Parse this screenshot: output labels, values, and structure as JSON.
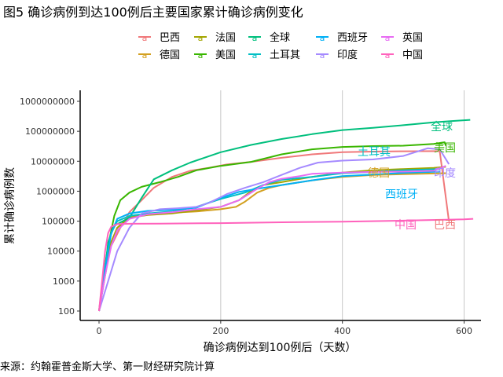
{
  "title": "图5 确诊病例到达100例后主要国家累计确诊病例变化",
  "source": "来源：约翰霍普金斯大学、第一财经研究院计算",
  "chart_data": {
    "type": "line",
    "xlabel": "确诊病例达到100例后（天数）",
    "ylabel": "累计确诊病例数",
    "x_scale": "linear",
    "y_scale": "log10",
    "xlim": [
      0,
      620
    ],
    "ylim": [
      100,
      1000000000
    ],
    "x_ticks": [
      0,
      200,
      400,
      600
    ],
    "x_tick_labels": [
      "0",
      "200",
      "400",
      "600"
    ],
    "y_ticks": [
      100,
      1000,
      10000,
      100000,
      1000000,
      10000000,
      100000000,
      1000000000
    ],
    "y_tick_labels": [
      "100",
      "1000",
      "10000",
      "100000",
      "1000000",
      "10000000",
      "100000000",
      "1000000000"
    ],
    "grid": "vertical major gridlines",
    "legend_position": "top",
    "series": [
      {
        "name": "巴西",
        "color": "#f0787a",
        "end_label": "巴西",
        "points": [
          [
            0,
            100
          ],
          [
            10,
            2000
          ],
          [
            20,
            15000
          ],
          [
            35,
            60000
          ],
          [
            50,
            200000
          ],
          [
            70,
            500000
          ],
          [
            90,
            1300000
          ],
          [
            120,
            3000000
          ],
          [
            150,
            4800000
          ],
          [
            180,
            6000000
          ],
          [
            210,
            7800000
          ],
          [
            250,
            9500000
          ],
          [
            300,
            13000000
          ],
          [
            350,
            17000000
          ],
          [
            400,
            20000000
          ],
          [
            450,
            21000000
          ],
          [
            500,
            21500000
          ],
          [
            560,
            21800000
          ],
          [
            575,
            100000
          ]
        ]
      },
      {
        "name": "德国",
        "color": "#d3a020",
        "end_label": "德国",
        "points": [
          [
            0,
            100
          ],
          [
            10,
            2000
          ],
          [
            20,
            20000
          ],
          [
            30,
            60000
          ],
          [
            50,
            140000
          ],
          [
            80,
            170000
          ],
          [
            120,
            190000
          ],
          [
            160,
            210000
          ],
          [
            200,
            250000
          ],
          [
            225,
            300000
          ],
          [
            240,
            450000
          ],
          [
            260,
            900000
          ],
          [
            280,
            1300000
          ],
          [
            300,
            1600000
          ],
          [
            350,
            2300000
          ],
          [
            400,
            3000000
          ],
          [
            450,
            3500000
          ],
          [
            500,
            3700000
          ],
          [
            570,
            4000000
          ]
        ]
      },
      {
        "name": "法国",
        "color": "#a3a500",
        "end_label": "",
        "points": [
          [
            0,
            100
          ],
          [
            10,
            1500
          ],
          [
            20,
            20000
          ],
          [
            30,
            60000
          ],
          [
            50,
            130000
          ],
          [
            80,
            160000
          ],
          [
            120,
            180000
          ],
          [
            160,
            230000
          ],
          [
            200,
            300000
          ],
          [
            230,
            500000
          ],
          [
            250,
            1000000
          ],
          [
            270,
            1600000
          ],
          [
            300,
            2000000
          ],
          [
            350,
            3000000
          ],
          [
            400,
            4200000
          ],
          [
            450,
            5000000
          ],
          [
            500,
            5500000
          ],
          [
            550,
            6000000
          ],
          [
            570,
            6500000
          ]
        ]
      },
      {
        "name": "美国",
        "color": "#39b600",
        "end_label": "美国",
        "points": [
          [
            0,
            100
          ],
          [
            8,
            2000
          ],
          [
            15,
            15000
          ],
          [
            25,
            150000
          ],
          [
            35,
            500000
          ],
          [
            50,
            900000
          ],
          [
            70,
            1400000
          ],
          [
            100,
            2000000
          ],
          [
            130,
            3000000
          ],
          [
            160,
            5000000
          ],
          [
            200,
            7000000
          ],
          [
            250,
            9500000
          ],
          [
            300,
            17000000
          ],
          [
            350,
            25000000
          ],
          [
            400,
            30000000
          ],
          [
            450,
            32000000
          ],
          [
            500,
            33000000
          ],
          [
            550,
            38000000
          ],
          [
            568,
            43000000
          ],
          [
            570,
            33000000
          ]
        ]
      },
      {
        "name": "全球",
        "color": "#00bf7d",
        "end_label": "全球",
        "points": [
          [
            0,
            100
          ],
          [
            8,
            1000
          ],
          [
            15,
            20000
          ],
          [
            25,
            70000
          ],
          [
            35,
            90000
          ],
          [
            50,
            130000
          ],
          [
            70,
            600000
          ],
          [
            90,
            2500000
          ],
          [
            120,
            5000000
          ],
          [
            150,
            9000000
          ],
          [
            200,
            20000000
          ],
          [
            250,
            35000000
          ],
          [
            300,
            55000000
          ],
          [
            350,
            80000000
          ],
          [
            400,
            110000000
          ],
          [
            450,
            130000000
          ],
          [
            500,
            160000000
          ],
          [
            550,
            200000000
          ],
          [
            580,
            220000000
          ],
          [
            610,
            240000000
          ]
        ]
      },
      {
        "name": "土耳其",
        "color": "#00bfc4",
        "end_label": "土耳其",
        "points": [
          [
            0,
            100
          ],
          [
            10,
            3000
          ],
          [
            20,
            40000
          ],
          [
            30,
            100000
          ],
          [
            50,
            150000
          ],
          [
            80,
            180000
          ],
          [
            120,
            210000
          ],
          [
            160,
            300000
          ],
          [
            200,
            550000
          ],
          [
            240,
            900000
          ],
          [
            270,
            1600000
          ],
          [
            300,
            2400000
          ],
          [
            350,
            3000000
          ],
          [
            400,
            4000000
          ],
          [
            450,
            4400000
          ],
          [
            500,
            5000000
          ],
          [
            560,
            5500000
          ]
        ]
      },
      {
        "name": "西班牙",
        "color": "#00b0f6",
        "end_label": "西班牙",
        "points": [
          [
            0,
            100
          ],
          [
            10,
            2500
          ],
          [
            20,
            40000
          ],
          [
            30,
            120000
          ],
          [
            50,
            180000
          ],
          [
            80,
            220000
          ],
          [
            120,
            240000
          ],
          [
            160,
            280000
          ],
          [
            200,
            600000
          ],
          [
            230,
            950000
          ],
          [
            260,
            1200000
          ],
          [
            300,
            1600000
          ],
          [
            350,
            2300000
          ],
          [
            400,
            3200000
          ],
          [
            450,
            3600000
          ],
          [
            500,
            4100000
          ],
          [
            560,
            4500000
          ]
        ]
      },
      {
        "name": "印度",
        "color": "#a58aff",
        "end_label": "印度",
        "points": [
          [
            0,
            100
          ],
          [
            15,
            1000
          ],
          [
            30,
            10000
          ],
          [
            50,
            60000
          ],
          [
            70,
            180000
          ],
          [
            100,
            250000
          ],
          [
            130,
            270000
          ],
          [
            160,
            300000
          ],
          [
            180,
            400000
          ],
          [
            210,
            800000
          ],
          [
            240,
            1300000
          ],
          [
            270,
            2000000
          ],
          [
            300,
            3500000
          ],
          [
            330,
            6000000
          ],
          [
            360,
            9000000
          ],
          [
            400,
            10500000
          ],
          [
            450,
            11500000
          ],
          [
            500,
            15000000
          ],
          [
            540,
            27000000
          ],
          [
            560,
            25000000
          ],
          [
            575,
            8000000
          ]
        ]
      },
      {
        "name": "英国",
        "color": "#e76bf3",
        "end_label": "",
        "points": [
          [
            0,
            100
          ],
          [
            10,
            1500
          ],
          [
            20,
            15000
          ],
          [
            30,
            50000
          ],
          [
            50,
            120000
          ],
          [
            80,
            170000
          ],
          [
            120,
            200000
          ],
          [
            160,
            250000
          ],
          [
            200,
            300000
          ],
          [
            230,
            500000
          ],
          [
            260,
            1200000
          ],
          [
            280,
            2000000
          ],
          [
            300,
            2600000
          ],
          [
            330,
            3200000
          ],
          [
            350,
            3800000
          ],
          [
            400,
            4200000
          ],
          [
            450,
            4400000
          ],
          [
            500,
            4500000
          ],
          [
            550,
            4800000
          ],
          [
            570,
            7000000
          ]
        ]
      },
      {
        "name": "中国",
        "color": "#ff62bc",
        "end_label": "中国",
        "points": [
          [
            0,
            100
          ],
          [
            5,
            1000
          ],
          [
            10,
            10000
          ],
          [
            15,
            40000
          ],
          [
            20,
            65000
          ],
          [
            30,
            80000
          ],
          [
            50,
            82000
          ],
          [
            100,
            83000
          ],
          [
            200,
            86000
          ],
          [
            300,
            92000
          ],
          [
            400,
            96000
          ],
          [
            500,
            104000
          ],
          [
            600,
            115000
          ],
          [
            615,
            120000
          ]
        ]
      }
    ]
  }
}
